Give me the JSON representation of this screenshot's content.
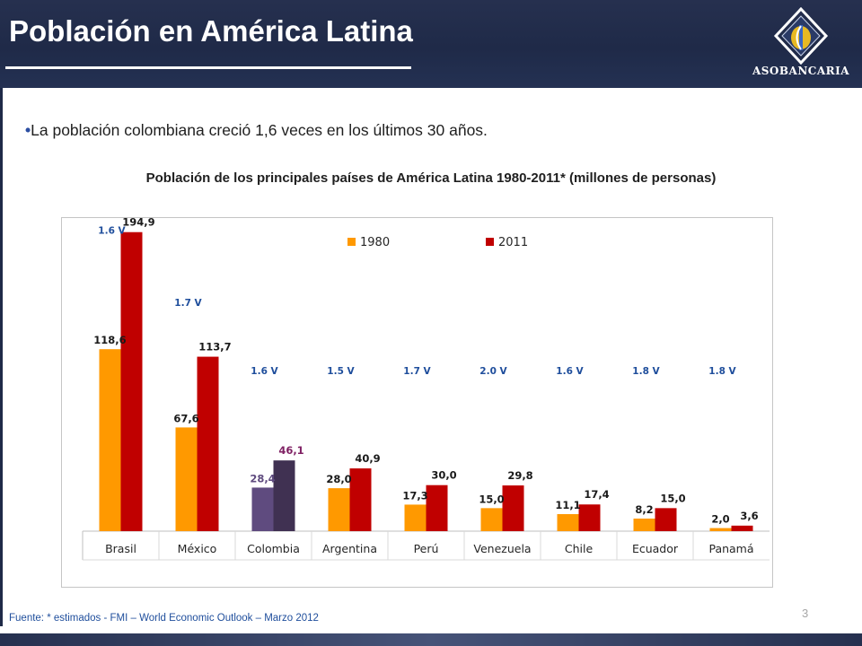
{
  "slide": {
    "title": "Población en América Latina",
    "logo_text": "ASOBANCARIA",
    "bullet": "La población colombiana creció 1,6 veces en los últimos 30 años.",
    "bullet_mark": "•",
    "source": "Fuente: * estimados - FMI – World Economic Outlook – Marzo 2012",
    "page_number": "3"
  },
  "colors": {
    "header": "#1f2a48",
    "series_1980": "#ff9900",
    "series_2011": "#c00000",
    "colombia_1980": "#5f4b7f",
    "colombia_2011": "#403152",
    "growth_label": "#1f4e9c",
    "colombia_label_1980": "#5f4b7f",
    "colombia_label_2011": "#7f2063"
  },
  "chart_data": {
    "type": "bar",
    "title": "Población de los principales países de América Latina 1980-2011* (millones de personas)",
    "categories": [
      "Brasil",
      "México",
      "Colombia",
      "Argentina",
      "Perú",
      "Venezuela",
      "Chile",
      "Ecuador",
      "Panamá"
    ],
    "series": [
      {
        "name": "1980",
        "values": [
          118.6,
          67.6,
          28.4,
          28.0,
          17.3,
          15.0,
          11.1,
          8.2,
          2.0
        ],
        "labels": [
          "118,6",
          "67,6",
          "28,4",
          "28,0",
          "17,3",
          "15,0",
          "11,1",
          "8,2",
          "2,0"
        ]
      },
      {
        "name": "2011",
        "values": [
          194.9,
          113.7,
          46.1,
          40.9,
          30.0,
          29.8,
          17.4,
          15.0,
          3.6
        ],
        "labels": [
          "194,9",
          "113,7",
          "46,1",
          "40,9",
          "30,0",
          "29,8",
          "17,4",
          "15,0",
          "3,6"
        ]
      }
    ],
    "growth_labels": [
      "1.6 V",
      "1.7 V",
      "1.6 V",
      "1.5 V",
      "1.7 V",
      "2.0 V",
      "1.6 V",
      "1.8 V",
      "1.8 V"
    ],
    "highlight_category": "Colombia",
    "ylim": [
      0,
      200
    ],
    "grid": false,
    "legend_position": "top-center"
  }
}
